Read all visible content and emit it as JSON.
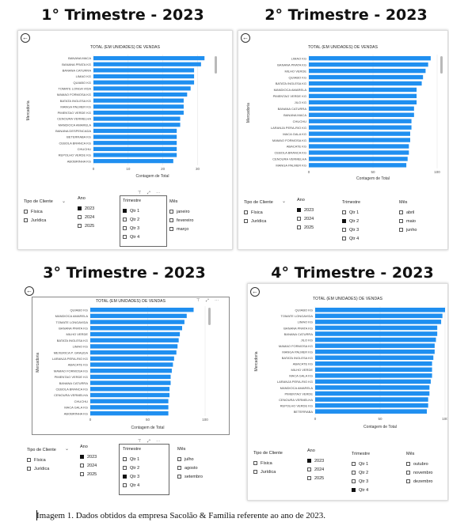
{
  "quarters": [
    {
      "heading": "1° Trimestre - 2023",
      "chart_title": "TOTAL (EM UNIDADES) DE VENDAS",
      "ylabel": "Mercadoria",
      "xlabel": "Contagem de Total",
      "xticks": [
        "0",
        "10",
        "20",
        "30"
      ],
      "xmax": 34,
      "bar_color": "#1f8ff0",
      "items": [
        {
          "name": "BANANA MACA",
          "value": 32
        },
        {
          "name": "BANANA PRATA KG",
          "value": 31
        },
        {
          "name": "BANANA CATURRA",
          "value": 29
        },
        {
          "name": "LIMAO KG",
          "value": 29
        },
        {
          "name": "QUIABO KG",
          "value": 29
        },
        {
          "name": "TOMATE LONGA VIDA",
          "value": 28
        },
        {
          "name": "MAMAO FORMOSA KG",
          "value": 27
        },
        {
          "name": "BATATA INGLESA KG",
          "value": 26
        },
        {
          "name": "MANGA PALMER KG",
          "value": 26
        },
        {
          "name": "PIMENTAO VERDE KG",
          "value": 26
        },
        {
          "name": "CENOURA VERMELHA",
          "value": 25
        },
        {
          "name": "MANDIOCA AMARELA",
          "value": 25
        },
        {
          "name": "BANANA DESPENCADA",
          "value": 24
        },
        {
          "name": "BETERRABA KG",
          "value": 24
        },
        {
          "name": "CEBOLA BRANCA KG",
          "value": 24
        },
        {
          "name": "CHUCHU",
          "value": 24
        },
        {
          "name": "REPOLHO VERDE KG",
          "value": 24
        },
        {
          "name": "ABOBRINHA KG",
          "value": 23
        }
      ],
      "slicers": {
        "cliente": {
          "title": "Tipo de Cliente",
          "options": [
            {
              "label": "Física",
              "checked": false
            },
            {
              "label": "Jurídica",
              "checked": false
            }
          ]
        },
        "ano": {
          "title": "Ano",
          "options": [
            {
              "label": "2023",
              "checked": true
            },
            {
              "label": "2024",
              "checked": false
            },
            {
              "label": "2025",
              "checked": false
            }
          ]
        },
        "trimestre": {
          "title": "Trimestre",
          "options": [
            {
              "label": "Qtr 1",
              "checked": true
            },
            {
              "label": "Qtr 2",
              "checked": false
            },
            {
              "label": "Qtr 3",
              "checked": false
            },
            {
              "label": "Qtr 4",
              "checked": false
            }
          ]
        },
        "mes": {
          "title": "Mês",
          "options": [
            {
              "label": "janeiro",
              "checked": false
            },
            {
              "label": "fevereiro",
              "checked": false
            },
            {
              "label": "março",
              "checked": false
            }
          ]
        }
      }
    },
    {
      "heading": "2° Trimestre - 2023",
      "chart_title": "TOTAL (EM UNIDADES) DE VENDAS",
      "ylabel": "Mercadoria",
      "xlabel": "Contagem de Total",
      "xticks": [
        "0",
        "50",
        "100"
      ],
      "xmax": 100,
      "bar_color": "#1f8ff0",
      "items": [
        {
          "name": "LIMAO KG",
          "value": 95
        },
        {
          "name": "BANANA PRATA KG",
          "value": 93
        },
        {
          "name": "MILHO VERDE",
          "value": 91
        },
        {
          "name": "QUIABO KG",
          "value": 89
        },
        {
          "name": "BATATA INGLESA KG",
          "value": 88
        },
        {
          "name": "MANDIOCA AMARELA",
          "value": 84
        },
        {
          "name": "PIMENTAO VERDE KG",
          "value": 84
        },
        {
          "name": "JILO KG",
          "value": 84
        },
        {
          "name": "BANANA CATURRA",
          "value": 82
        },
        {
          "name": "BANANA MACA",
          "value": 82
        },
        {
          "name": "CHUCHU",
          "value": 80
        },
        {
          "name": "LARANJA PERA-RIO KG",
          "value": 80
        },
        {
          "name": "MACA GALA KG",
          "value": 79
        },
        {
          "name": "MAMAO FORMOSA KG",
          "value": 79
        },
        {
          "name": "ABACATE KG",
          "value": 78
        },
        {
          "name": "CEBOLA BRANCA KG",
          "value": 78
        },
        {
          "name": "CENOURA VERMELHA",
          "value": 77
        },
        {
          "name": "MANGA PALMER KG",
          "value": 76
        }
      ],
      "slicers": {
        "cliente": {
          "title": "Tipo de Cliente",
          "options": [
            {
              "label": "Física",
              "checked": false
            },
            {
              "label": "Jurídica",
              "checked": false
            }
          ]
        },
        "ano": {
          "title": "Ano",
          "options": [
            {
              "label": "2023",
              "checked": true
            },
            {
              "label": "2024",
              "checked": false
            },
            {
              "label": "2025",
              "checked": false
            }
          ]
        },
        "trimestre": {
          "title": "Trimestre",
          "options": [
            {
              "label": "Qtr 1",
              "checked": false
            },
            {
              "label": "Qtr 2",
              "checked": true
            },
            {
              "label": "Qtr 3",
              "checked": false
            },
            {
              "label": "Qtr 4",
              "checked": false
            }
          ]
        },
        "mes": {
          "title": "Mês",
          "options": [
            {
              "label": "abril",
              "checked": false
            },
            {
              "label": "maio",
              "checked": false
            },
            {
              "label": "junho",
              "checked": false
            }
          ]
        }
      }
    },
    {
      "heading": "3° Trimestre - 2023",
      "chart_title": "TOTAL (EM UNIDADES) DE VENDAS",
      "ylabel": "Mercadoria",
      "xlabel": "Contagem de Total",
      "xticks": [
        "0",
        "50",
        "100"
      ],
      "xmax": 100,
      "bar_color": "#1f8ff0",
      "items": [
        {
          "name": "QUIABO KG",
          "value": 90
        },
        {
          "name": "MANDIOCA AMARELA",
          "value": 84
        },
        {
          "name": "TOMATE LONGAVIDA",
          "value": 82
        },
        {
          "name": "BANANA PRATA KG",
          "value": 80
        },
        {
          "name": "MILHO VERDE",
          "value": 78
        },
        {
          "name": "BATATA INGLESA KG",
          "value": 77
        },
        {
          "name": "LIMAO KG",
          "value": 76
        },
        {
          "name": "MEXERICA P. GRAUDA",
          "value": 75
        },
        {
          "name": "LARANJA PERA-RIO KG",
          "value": 73
        },
        {
          "name": "ABACATE KG",
          "value": 72
        },
        {
          "name": "MAMAO FORMOSA KG",
          "value": 71
        },
        {
          "name": "PIMENTAO VERDE KG",
          "value": 70
        },
        {
          "name": "BANANA CATURRA",
          "value": 70
        },
        {
          "name": "CEBOLA BRANCA KG",
          "value": 69
        },
        {
          "name": "CENOURA VERMELHA",
          "value": 69
        },
        {
          "name": "CHUCHU",
          "value": 68
        },
        {
          "name": "MACA GALA KG",
          "value": 68
        },
        {
          "name": "ABOBRINHA KG",
          "value": 68
        }
      ],
      "slicers": {
        "cliente": {
          "title": "Tipo de Cliente",
          "options": [
            {
              "label": "Física",
              "checked": false
            },
            {
              "label": "Jurídica",
              "checked": false
            }
          ]
        },
        "ano": {
          "title": "Ano",
          "options": [
            {
              "label": "2023",
              "checked": true
            },
            {
              "label": "2024",
              "checked": false
            },
            {
              "label": "2025",
              "checked": false
            }
          ]
        },
        "trimestre": {
          "title": "Trimestre",
          "options": [
            {
              "label": "Qtr 1",
              "checked": false
            },
            {
              "label": "Qtr 2",
              "checked": false
            },
            {
              "label": "Qtr 3",
              "checked": true
            },
            {
              "label": "Qtr 4",
              "checked": false
            }
          ]
        },
        "mes": {
          "title": "Mês",
          "options": [
            {
              "label": "julho",
              "checked": false
            },
            {
              "label": "agosto",
              "checked": false
            },
            {
              "label": "setembro",
              "checked": false
            }
          ]
        }
      }
    },
    {
      "heading": "4° Trimestre - 2023",
      "chart_title": "TOTAL (EM UNIDADES) DE VENDAS",
      "ylabel": "Mercadoria",
      "xlabel": "Contagem de Total",
      "xticks": [
        "0",
        "50",
        "100"
      ],
      "xmax": 100,
      "bar_color": "#1f8ff0",
      "items": [
        {
          "name": "QUIABO KG",
          "value": 100
        },
        {
          "name": "TOMATE LONGAVIDA",
          "value": 98
        },
        {
          "name": "LIMAO KG",
          "value": 97
        },
        {
          "name": "BANANA PRATA KG",
          "value": 94
        },
        {
          "name": "BANANA CATURRA",
          "value": 94
        },
        {
          "name": "JILO KG",
          "value": 93
        },
        {
          "name": "MAMAO FORMOSA KG",
          "value": 92
        },
        {
          "name": "MANGA PALMER KG",
          "value": 92
        },
        {
          "name": "BATATA INGLESA KG",
          "value": 91
        },
        {
          "name": "ABACATE KG",
          "value": 90
        },
        {
          "name": "MILHO VERDE",
          "value": 90
        },
        {
          "name": "MACA GALA KG",
          "value": 90
        },
        {
          "name": "LARANJA PERA-RIO KG",
          "value": 89
        },
        {
          "name": "MANDIOCA AMARELA",
          "value": 88
        },
        {
          "name": "PIMENTAO VERDE",
          "value": 88
        },
        {
          "name": "CENOURA VERMELHA",
          "value": 87
        },
        {
          "name": "REPOLHO VERDE KG",
          "value": 87
        },
        {
          "name": "BETERRABA",
          "value": 86
        }
      ],
      "slicers": {
        "cliente": {
          "title": "Tipo de Cliente",
          "options": [
            {
              "label": "Física",
              "checked": false
            },
            {
              "label": "Jurídica",
              "checked": false
            }
          ]
        },
        "ano": {
          "title": "Ano",
          "options": [
            {
              "label": "2023",
              "checked": true
            },
            {
              "label": "2024",
              "checked": false
            },
            {
              "label": "2025",
              "checked": false
            }
          ]
        },
        "trimestre": {
          "title": "Trimestre",
          "options": [
            {
              "label": "Qtr 1",
              "checked": false
            },
            {
              "label": "Qtr 2",
              "checked": false
            },
            {
              "label": "Qtr 3",
              "checked": false
            },
            {
              "label": "Qtr 4",
              "checked": true
            }
          ]
        },
        "mes": {
          "title": "Mês",
          "options": [
            {
              "label": "outubro",
              "checked": false
            },
            {
              "label": "novembro",
              "checked": false
            },
            {
              "label": "dezembro",
              "checked": false
            }
          ]
        }
      }
    }
  ],
  "caption": "Imagem 1. Dados obtidos da empresa Sacolão & Família referente ao ano de 2023.",
  "chart_data": [
    {
      "type": "bar",
      "title": "TOTAL (EM UNIDADES) DE VENDAS",
      "xlabel": "Contagem de Total",
      "ylabel": "Mercadoria",
      "categories": [
        "BANANA MACA",
        "BANANA PRATA KG",
        "BANANA CATURRA",
        "LIMAO KG",
        "QUIABO KG",
        "TOMATE LONGA VIDA",
        "MAMAO FORMOSA KG",
        "BATATA INGLESA KG",
        "MANGA PALMER KG",
        "PIMENTAO VERDE KG",
        "CENOURA VERMELHA",
        "MANDIOCA AMARELA",
        "BANANA DESPENCADA",
        "BETERRABA KG",
        "CEBOLA BRANCA KG",
        "CHUCHU",
        "REPOLHO VERDE KG",
        "ABOBRINHA KG"
      ],
      "values": [
        32,
        31,
        29,
        29,
        29,
        28,
        27,
        26,
        26,
        26,
        25,
        25,
        24,
        24,
        24,
        24,
        24,
        23
      ],
      "xlim": [
        0,
        34
      ]
    },
    {
      "type": "bar",
      "title": "TOTAL (EM UNIDADES) DE VENDAS",
      "xlabel": "Contagem de Total",
      "ylabel": "Mercadoria",
      "categories": [
        "LIMAO KG",
        "BANANA PRATA KG",
        "MILHO VERDE",
        "QUIABO KG",
        "BATATA INGLESA KG",
        "MANDIOCA AMARELA",
        "PIMENTAO VERDE KG",
        "JILO KG",
        "BANANA CATURRA",
        "BANANA MACA",
        "CHUCHU",
        "LARANJA PERA-RIO KG",
        "MACA GALA KG",
        "MAMAO FORMOSA KG",
        "ABACATE KG",
        "CEBOLA BRANCA KG",
        "CENOURA VERMELHA",
        "MANGA PALMER KG"
      ],
      "values": [
        95,
        93,
        91,
        89,
        88,
        84,
        84,
        84,
        82,
        82,
        80,
        80,
        79,
        79,
        78,
        78,
        77,
        76
      ],
      "xlim": [
        0,
        100
      ]
    },
    {
      "type": "bar",
      "title": "TOTAL (EM UNIDADES) DE VENDAS",
      "xlabel": "Contagem de Total",
      "ylabel": "Mercadoria",
      "categories": [
        "QUIABO KG",
        "MANDIOCA AMARELA",
        "TOMATE LONGAVIDA",
        "BANANA PRATA KG",
        "MILHO VERDE",
        "BATATA INGLESA KG",
        "LIMAO KG",
        "MEXERICA P. GRAUDA",
        "LARANJA PERA-RIO KG",
        "ABACATE KG",
        "MAMAO FORMOSA KG",
        "PIMENTAO VERDE KG",
        "BANANA CATURRA",
        "CEBOLA BRANCA KG",
        "CENOURA VERMELHA",
        "CHUCHU",
        "MACA GALA KG",
        "ABOBRINHA KG"
      ],
      "values": [
        90,
        84,
        82,
        80,
        78,
        77,
        76,
        75,
        73,
        72,
        71,
        70,
        70,
        69,
        69,
        68,
        68,
        68
      ],
      "xlim": [
        0,
        100
      ]
    },
    {
      "type": "bar",
      "title": "TOTAL (EM UNIDADES) DE VENDAS",
      "xlabel": "Contagem de Total",
      "ylabel": "Mercadoria",
      "categories": [
        "QUIABO KG",
        "TOMATE LONGAVIDA",
        "LIMAO KG",
        "BANANA PRATA KG",
        "BANANA CATURRA",
        "JILO KG",
        "MAMAO FORMOSA KG",
        "MANGA PALMER KG",
        "BATATA INGLESA KG",
        "ABACATE KG",
        "MILHO VERDE",
        "MACA GALA KG",
        "LARANJA PERA-RIO KG",
        "MANDIOCA AMARELA",
        "PIMENTAO VERDE",
        "CENOURA VERMELHA",
        "REPOLHO VERDE KG",
        "BETERRABA"
      ],
      "values": [
        100,
        98,
        97,
        94,
        94,
        93,
        92,
        92,
        91,
        90,
        90,
        90,
        89,
        88,
        88,
        87,
        87,
        86
      ],
      "xlim": [
        0,
        100
      ]
    }
  ]
}
